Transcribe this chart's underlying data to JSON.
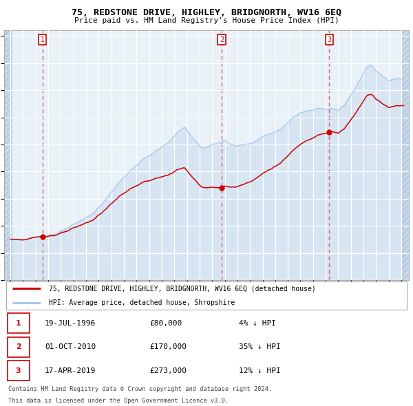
{
  "title": "75, REDSTONE DRIVE, HIGHLEY, BRIDGNORTH, WV16 6EQ",
  "subtitle": "Price paid vs. HM Land Registry's House Price Index (HPI)",
  "legend_property": "75, REDSTONE DRIVE, HIGHLEY, BRIDGNORTH, WV16 6EQ (detached house)",
  "legend_hpi": "HPI: Average price, detached house, Shropshire",
  "footer1": "Contains HM Land Registry data © Crown copyright and database right 2024.",
  "footer2": "This data is licensed under the Open Government Licence v3.0.",
  "sales": [
    {
      "num": 1,
      "date": "19-JUL-1996",
      "price": 80000,
      "pct": "4%",
      "dir": "↓"
    },
    {
      "num": 2,
      "date": "01-OCT-2010",
      "price": 170000,
      "pct": "35%",
      "dir": "↓"
    },
    {
      "num": 3,
      "date": "17-APR-2019",
      "price": 273000,
      "pct": "12%",
      "dir": "↓"
    }
  ],
  "sale_dates_decimal": [
    1996.547,
    2010.748,
    2019.293
  ],
  "sale_prices": [
    80000,
    170000,
    273000
  ],
  "ylim": [
    0,
    460000
  ],
  "yticks": [
    0,
    50000,
    100000,
    150000,
    200000,
    250000,
    300000,
    350000,
    400000,
    450000
  ],
  "hpi_color": "#a8c8e8",
  "property_color": "#cc0000",
  "dashed_color": "#e06060",
  "plot_background": "#e8f0f8",
  "grid_color": "#ffffff",
  "hatch_color": "#c8d8e8"
}
